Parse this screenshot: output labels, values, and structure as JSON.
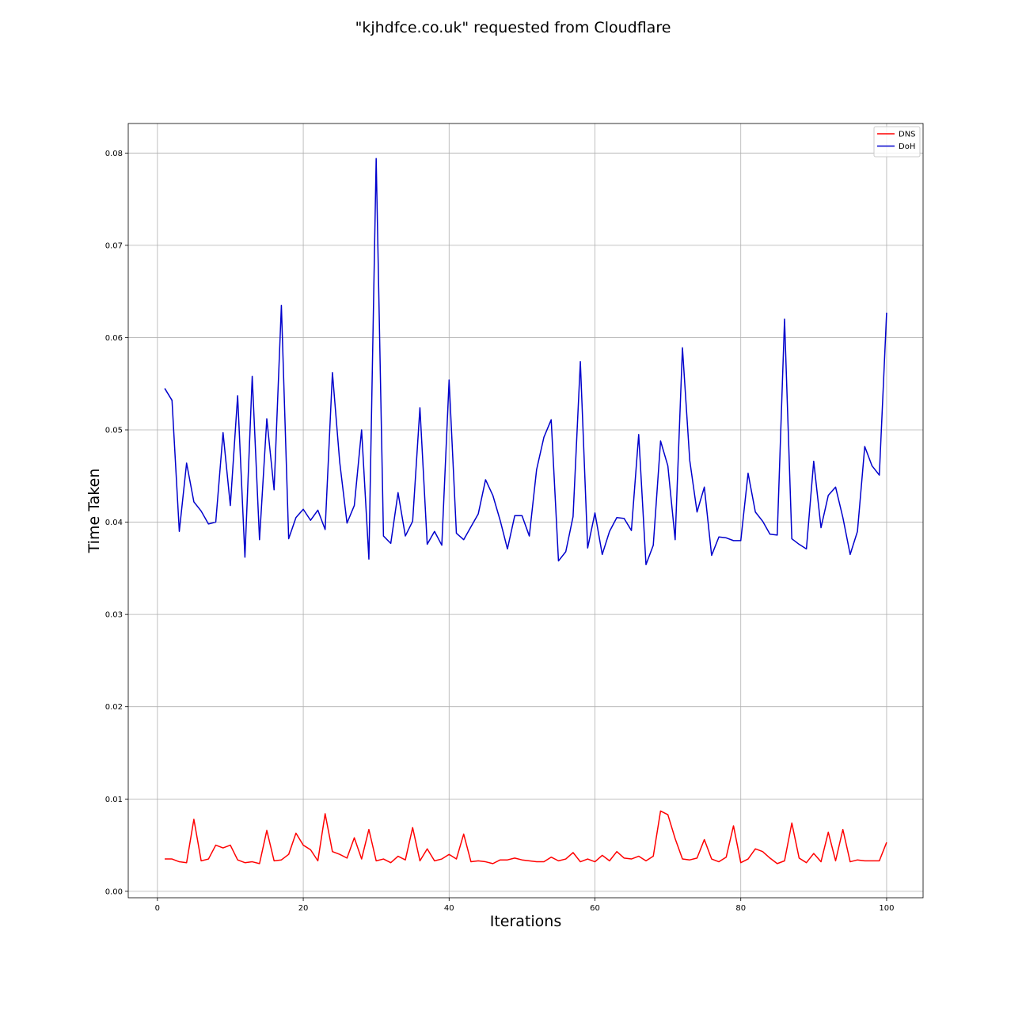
{
  "chart_data": {
    "type": "line",
    "title": "\"kjhdfce.co.uk\" requested from Cloudflare",
    "xlabel": "Iterations",
    "ylabel": "Time Taken",
    "xlim": [
      -4,
      105
    ],
    "ylim": [
      -0.0007,
      0.0832
    ],
    "xticks": [
      0,
      20,
      40,
      60,
      80,
      100
    ],
    "yticks": [
      0.0,
      0.01,
      0.02,
      0.03,
      0.04,
      0.05,
      0.06,
      0.07,
      0.08
    ],
    "grid": true,
    "legend_position": "top-right",
    "x": [
      1,
      2,
      3,
      4,
      5,
      6,
      7,
      8,
      9,
      10,
      11,
      12,
      13,
      14,
      15,
      16,
      17,
      18,
      19,
      20,
      21,
      22,
      23,
      24,
      25,
      26,
      27,
      28,
      29,
      30,
      31,
      32,
      33,
      34,
      35,
      36,
      37,
      38,
      39,
      40,
      41,
      42,
      43,
      44,
      45,
      46,
      47,
      48,
      49,
      50,
      51,
      52,
      53,
      54,
      55,
      56,
      57,
      58,
      59,
      60,
      61,
      62,
      63,
      64,
      65,
      66,
      67,
      68,
      69,
      70,
      71,
      72,
      73,
      74,
      75,
      76,
      77,
      78,
      79,
      80,
      81,
      82,
      83,
      84,
      85,
      86,
      87,
      88,
      89,
      90,
      91,
      92,
      93,
      94,
      95,
      96,
      97,
      98,
      99,
      100
    ],
    "series": [
      {
        "name": "DNS",
        "color": "#ff0000",
        "values": [
          0.0035,
          0.0035,
          0.0032,
          0.0031,
          0.0078,
          0.0033,
          0.0035,
          0.005,
          0.0047,
          0.005,
          0.0034,
          0.0031,
          0.0032,
          0.003,
          0.0066,
          0.0033,
          0.0034,
          0.004,
          0.0063,
          0.005,
          0.0045,
          0.0033,
          0.0084,
          0.0043,
          0.004,
          0.0036,
          0.0058,
          0.0035,
          0.0067,
          0.0033,
          0.0035,
          0.0031,
          0.0038,
          0.0034,
          0.0069,
          0.0033,
          0.0046,
          0.0033,
          0.0035,
          0.004,
          0.0035,
          0.0062,
          0.0032,
          0.0033,
          0.0032,
          0.003,
          0.0034,
          0.0034,
          0.0036,
          0.0034,
          0.0033,
          0.0032,
          0.0032,
          0.0037,
          0.0033,
          0.0035,
          0.0042,
          0.0032,
          0.0035,
          0.0032,
          0.0039,
          0.0033,
          0.0043,
          0.0036,
          0.0035,
          0.0038,
          0.0033,
          0.0038,
          0.0087,
          0.0083,
          0.0057,
          0.0035,
          0.0034,
          0.0036,
          0.0056,
          0.0035,
          0.0032,
          0.0037,
          0.0071,
          0.0031,
          0.0035,
          0.0046,
          0.0043,
          0.0036,
          0.003,
          0.0033,
          0.0074,
          0.0036,
          0.0031,
          0.0041,
          0.0032,
          0.0064,
          0.0033,
          0.0067,
          0.0032,
          0.0034,
          0.0033,
          0.0033,
          0.0033,
          0.0053
        ]
      },
      {
        "name": "DoH",
        "color": "#0000cc",
        "values": [
          0.0545,
          0.0532,
          0.039,
          0.0464,
          0.0422,
          0.0412,
          0.0398,
          0.04,
          0.0497,
          0.0418,
          0.0537,
          0.0362,
          0.0558,
          0.0381,
          0.0512,
          0.0435,
          0.0635,
          0.0382,
          0.0405,
          0.0414,
          0.0402,
          0.0413,
          0.0392,
          0.0562,
          0.0465,
          0.0399,
          0.0418,
          0.05,
          0.036,
          0.0794,
          0.0385,
          0.0377,
          0.0432,
          0.0385,
          0.0401,
          0.0524,
          0.0376,
          0.039,
          0.0375,
          0.0554,
          0.0388,
          0.0381,
          0.0395,
          0.0409,
          0.0446,
          0.0429,
          0.0402,
          0.0371,
          0.0407,
          0.0407,
          0.0385,
          0.0457,
          0.0492,
          0.0511,
          0.0358,
          0.0368,
          0.0406,
          0.0574,
          0.0372,
          0.041,
          0.0365,
          0.039,
          0.0405,
          0.0404,
          0.0391,
          0.0495,
          0.0354,
          0.0375,
          0.0488,
          0.0461,
          0.0381,
          0.0589,
          0.0467,
          0.0411,
          0.0438,
          0.0364,
          0.0384,
          0.0383,
          0.038,
          0.038,
          0.0453,
          0.0411,
          0.0401,
          0.0387,
          0.0386,
          0.062,
          0.0382,
          0.0376,
          0.0371,
          0.0466,
          0.0394,
          0.0429,
          0.0438,
          0.0405,
          0.0365,
          0.039,
          0.0482,
          0.0461,
          0.0451,
          0.0627
        ]
      }
    ]
  }
}
